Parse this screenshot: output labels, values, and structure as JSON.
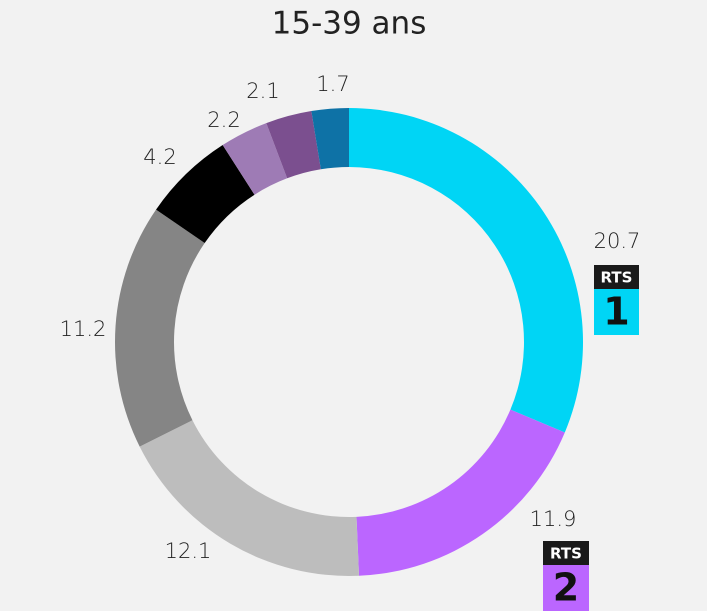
{
  "chart_data": {
    "type": "donut",
    "title": "15-39 ans",
    "values": [
      20.7,
      11.9,
      12.1,
      11.2,
      4.2,
      2.2,
      2.1,
      1.7
    ],
    "colors": [
      "#00d5f5",
      "#bb66ff",
      "#bdbdbd",
      "#858585",
      "#000000",
      "#9e7bb5",
      "#7b4f8f",
      "#0e72a6"
    ],
    "logos": [
      {
        "brand": "RTS",
        "number": "1"
      },
      {
        "brand": "RTS",
        "number": "2"
      }
    ]
  }
}
